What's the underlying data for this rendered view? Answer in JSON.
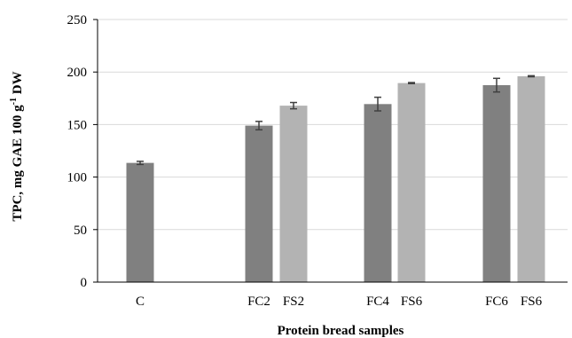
{
  "chart_data": {
    "type": "bar",
    "xlabel": "Protein bread samples",
    "ylabel_main": "TPC, mg GAE 100 g",
    "ylabel_sup": "-1",
    "ylabel_tail": " DW",
    "ylim": [
      0,
      250
    ],
    "yticks": [
      0,
      50,
      100,
      150,
      200,
      250
    ],
    "grid": "horizontal",
    "categories": [
      "C",
      "FC2",
      "FS2",
      "FC4",
      "FS6",
      "FC6",
      "FS6"
    ],
    "values": [
      113.5,
      149,
      168,
      169.5,
      189.5,
      187.5,
      196
    ],
    "errors": [
      1.5,
      4,
      3,
      6.5,
      0.5,
      6.5,
      0.5
    ],
    "colors": [
      "#808080",
      "#808080",
      "#b3b3b3",
      "#808080",
      "#b3b3b3",
      "#808080",
      "#b3b3b3"
    ],
    "error_color": "#404040"
  }
}
